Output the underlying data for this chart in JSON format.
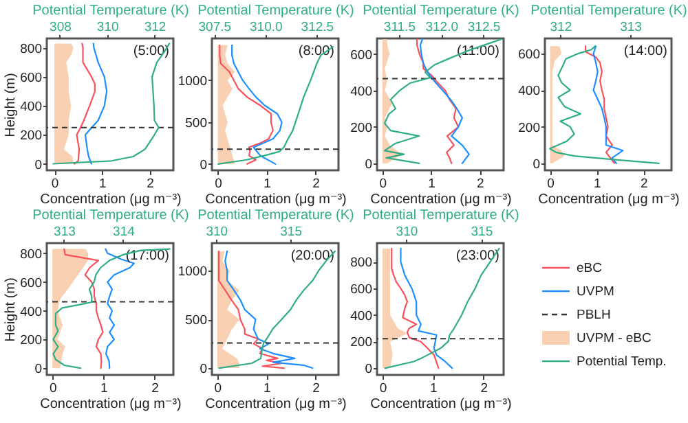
{
  "chart_data": [
    {
      "type": "line",
      "orientation": "horizontal",
      "annotations": [
        "(5:00)"
      ],
      "xlabel": "Concentration (μg m⁻³)",
      "x2label": "Potential Temperature (K)",
      "ylabel": "Height (m)",
      "xlim": [
        -0.16,
        2.5
      ],
      "xticks": [
        0,
        1,
        2
      ],
      "x2lim": [
        307.45,
        312.8
      ],
      "x2ticks": [
        308,
        310,
        312
      ],
      "ylim": [
        -45,
        865
      ],
      "yticks": [
        0,
        200,
        400,
        600,
        800
      ],
      "ref_lines": [
        {
          "axis": "y",
          "value": 250,
          "color": "#333333",
          "line_style": "dashed"
        }
      ],
      "series": [
        {
          "type": "line",
          "color": "#f8515b",
          "values": [
            0.42,
            0.5,
            0.52,
            0.47,
            0.55,
            0.62,
            0.74,
            0.85,
            0.85,
            0.78,
            0.6,
            0.6,
            0.58
          ],
          "x": [
            0,
            20,
            100,
            200,
            250,
            300,
            400,
            500,
            550,
            600,
            700,
            800,
            830
          ]
        },
        {
          "type": "line",
          "color": "#1e8fff",
          "values": [
            0.78,
            0.72,
            0.69,
            0.65,
            0.92,
            1.05,
            1.1,
            1.05,
            0.92,
            0.83,
            0.82
          ],
          "x": [
            0,
            50,
            100,
            200,
            300,
            400,
            500,
            600,
            700,
            800,
            830
          ]
        },
        {
          "type": "area",
          "color": "#f9d1b2",
          "values": [
            0.4,
            0.38,
            0.2,
            0.25,
            0.3,
            0.3,
            0.35,
            0.3,
            0.3,
            0.25,
            0.35,
            0.4,
            0.35
          ],
          "x": [
            0,
            50,
            100,
            150,
            200,
            300,
            400,
            500,
            600,
            700,
            750,
            800,
            830
          ]
        },
        {
          "type": "line",
          "axis": "x2",
          "color": "#2fae86",
          "values": [
            307.72,
            310.18,
            311.1,
            311.6,
            312.0,
            312.18,
            312.0,
            311.98,
            311.9,
            312.1,
            312.45,
            312.63
          ],
          "x": [
            0,
            20,
            50,
            100,
            200,
            250,
            300,
            400,
            600,
            700,
            780,
            830
          ]
        }
      ]
    },
    {
      "type": "line",
      "orientation": "horizontal",
      "annotations": [
        "(8:00)"
      ],
      "xlabel": "Concentration (μg m⁻³)",
      "x2label": "Potential Temperature (K)",
      "xlim": [
        -0.12,
        2.47
      ],
      "xticks": [
        0,
        1,
        2
      ],
      "x2lim": [
        307.39,
        313.56
      ],
      "x2ticks": [
        {
          "value": 307.5,
          "label": "307.5"
        },
        {
          "value": 310,
          "label": "310.0"
        },
        {
          "value": 312.5,
          "label": "312.5"
        }
      ],
      "ylim": [
        -75,
        1500
      ],
      "yticks": [
        0,
        500,
        1000
      ],
      "ref_lines": [
        {
          "axis": "y",
          "value": 178,
          "color": "#333333",
          "line_style": "dashed"
        }
      ],
      "series": [
        {
          "type": "line",
          "color": "#f8515b",
          "values": [
            0.6,
            0.78,
            0.64,
            0.66,
            0.64,
            0.87,
            1.04,
            1.13,
            1.09,
            1.09,
            0.87,
            0.6,
            0.42,
            0.33,
            0.24,
            0.06,
            0.04,
            0.04
          ],
          "x": [
            0,
            50,
            100,
            150,
            200,
            250,
            300,
            400,
            500,
            600,
            700,
            800,
            900,
            1000,
            1100,
            1200,
            1300,
            1420
          ]
        },
        {
          "type": "line",
          "color": "#1e8fff",
          "values": [
            1.18,
            0.87,
            0.73,
            1.13,
            1.27,
            1.31,
            1.22,
            0.96,
            0.78,
            0.64,
            0.51,
            0.42,
            0.33,
            0.29,
            0.29
          ],
          "x": [
            0,
            100,
            200,
            300,
            400,
            500,
            600,
            700,
            800,
            900,
            1000,
            1100,
            1200,
            1300,
            1420
          ]
        },
        {
          "type": "area",
          "color": "#f9d1b2",
          "values": [
            0.35,
            0.3,
            0.25,
            0.2,
            0.15,
            0.2,
            0.15,
            0.1,
            0.2,
            0.3,
            0.2,
            0.35,
            0.2,
            0.15,
            0.2
          ],
          "x": [
            0,
            100,
            200,
            300,
            400,
            500,
            600,
            700,
            800,
            900,
            1000,
            1100,
            1200,
            1300,
            1420
          ]
        },
        {
          "type": "line",
          "axis": "x2",
          "color": "#2fae86",
          "values": [
            307.7,
            309.09,
            309.94,
            310.69,
            310.9,
            311.1,
            311.33,
            311.6,
            311.86,
            312.2,
            312.5,
            312.7,
            313.3
          ],
          "x": [
            0,
            50,
            100,
            150,
            200,
            300,
            400,
            600,
            800,
            1000,
            1200,
            1300,
            1400
          ]
        }
      ]
    },
    {
      "type": "line",
      "orientation": "horizontal",
      "annotations": [
        "(11:00)"
      ],
      "xlabel": "Concentration (μg m⁻³)",
      "x2label": "Potential Temperature (K)",
      "xlim": [
        -0.11,
        2.49
      ],
      "xticks": [
        0,
        1,
        2
      ],
      "x2lim": [
        311.24,
        312.74
      ],
      "x2ticks": [
        311.5,
        {
          "value": 312,
          "label": "312.0"
        },
        312.5
      ],
      "ylim": [
        -38,
        685
      ],
      "yticks": [
        0,
        200,
        400,
        600
      ],
      "ref_lines": [
        {
          "axis": "y",
          "value": 465,
          "color": "#333333",
          "line_style": "dashed"
        }
      ],
      "series": [
        {
          "type": "line",
          "color": "#f8515b",
          "values": [
            1.42,
            1.38,
            1.32,
            1.47,
            1.33,
            1.56,
            1.47,
            1.51,
            1.38,
            1.29,
            1.11,
            1.02,
            0.84,
            0.84,
            0.76,
            0.71,
            0.71
          ],
          "x": [
            0,
            30,
            60,
            100,
            150,
            200,
            250,
            300,
            350,
            400,
            450,
            480,
            520,
            550,
            600,
            650,
            680
          ]
        },
        {
          "type": "line",
          "color": "#1e8fff",
          "values": [
            1.64,
            1.78,
            1.64,
            1.42,
            1.56,
            1.64,
            1.53,
            1.4,
            1.24,
            1.07,
            0.98,
            0.89,
            0.84,
            0.8,
            0.78,
            0.82
          ],
          "x": [
            0,
            50,
            100,
            150,
            200,
            250,
            300,
            350,
            400,
            450,
            480,
            520,
            550,
            600,
            650,
            680
          ]
        },
        {
          "type": "area",
          "color": "#f9d1b2",
          "values": [
            0.1,
            0.4,
            0.15,
            0.05,
            0.1,
            0.05,
            0.2,
            0.05,
            0.1,
            0.05,
            0.15,
            0.1,
            0.1
          ],
          "x": [
            0,
            50,
            100,
            150,
            200,
            250,
            330,
            400,
            450,
            520,
            600,
            650,
            680
          ]
        },
        {
          "type": "line",
          "axis": "x2",
          "color": "#2fae86",
          "values": [
            311.74,
            311.35,
            311.56,
            311.33,
            311.46,
            311.74,
            311.4,
            311.33,
            311.38,
            311.46,
            311.4,
            311.51,
            311.63,
            311.87,
            311.81,
            311.92,
            312.12,
            312.33,
            312.58,
            312.71
          ],
          "x": [
            0,
            30,
            50,
            70,
            110,
            150,
            180,
            220,
            270,
            300,
            350,
            400,
            440,
            470,
            500,
            540,
            580,
            620,
            660,
            680
          ]
        }
      ]
    },
    {
      "type": "line",
      "orientation": "horizontal",
      "annotations": [
        "(14:00)"
      ],
      "xlabel": "Concentration (μg m⁻³)",
      "x2label": "Potential Temperature (K)",
      "xlim": [
        -0.11,
        2.6
      ],
      "xticks": [
        0,
        1,
        2
      ],
      "x2lim": [
        311.78,
        313.59
      ],
      "x2ticks": [
        312,
        313
      ],
      "ylim": [
        -38,
        682
      ],
      "yticks": [
        0,
        200,
        400,
        600
      ],
      "series": [
        {
          "type": "line",
          "color": "#f8515b",
          "values": [
            1.38,
            1.29,
            1.2,
            1.33,
            1.2,
            1.24,
            1.2,
            1.16,
            1.16,
            1.11,
            1.07,
            1.11,
            1.07,
            0.98,
            0.76,
            0.76
          ],
          "x": [
            0,
            30,
            60,
            100,
            150,
            200,
            250,
            300,
            350,
            400,
            450,
            500,
            550,
            580,
            610,
            640
          ]
        },
        {
          "type": "line",
          "color": "#1e8fff",
          "values": [
            1.42,
            1.33,
            1.56,
            1.2,
            1.2,
            1.2,
            1.16,
            1.11,
            1.02,
            0.93,
            0.98,
            1.02,
            0.98,
            0.93,
            0.98
          ],
          "x": [
            0,
            30,
            70,
            100,
            150,
            200,
            250,
            300,
            350,
            400,
            450,
            500,
            550,
            600,
            640
          ]
        },
        {
          "type": "area",
          "color": "#f9d1b2",
          "values": [
            0.05,
            0.3,
            0.25,
            0.05,
            0.05,
            0.05,
            0.05,
            0.05,
            0.1,
            0.25,
            0.2
          ],
          "x": [
            0,
            40,
            70,
            100,
            200,
            300,
            400,
            500,
            560,
            600,
            640
          ]
        },
        {
          "type": "line",
          "axis": "x2",
          "color": "#2fae86",
          "values": [
            313.41,
            312.79,
            312.2,
            311.94,
            311.85,
            312.09,
            312.2,
            312.14,
            312.0,
            312.29,
            312.06,
            311.97,
            312.14,
            312.02,
            311.97,
            312.02,
            312.08,
            312.26,
            312.44,
            312.5
          ],
          "x": [
            0,
            20,
            40,
            60,
            80,
            120,
            160,
            200,
            230,
            270,
            310,
            360,
            400,
            440,
            480,
            520,
            570,
            600,
            620,
            640
          ]
        }
      ]
    },
    {
      "type": "line",
      "orientation": "horizontal",
      "annotations": [
        "(17:00)"
      ],
      "xlabel": "Concentration (μg m⁻³)",
      "x2label": "Potential Temperature (K)",
      "ylabel": "Height (m)",
      "xlim": [
        -0.11,
        2.37
      ],
      "xticks": [
        0,
        1,
        2
      ],
      "x2lim": [
        312.71,
        314.85
      ],
      "x2ticks": [
        313,
        314
      ],
      "ylim": [
        -47,
        871
      ],
      "yticks": [
        0,
        200,
        400,
        600,
        800
      ],
      "ref_lines": [
        {
          "axis": "y",
          "value": 462,
          "color": "#333333",
          "line_style": "dashed"
        }
      ],
      "series": [
        {
          "type": "line",
          "color": "#f8515b",
          "values": [
            0.95,
            0.96,
            0.95,
            0.86,
            0.9,
            0.99,
            0.95,
            0.9,
            0.86,
            0.86,
            0.82,
            0.82,
            0.77,
            0.64,
            0.73,
            0.9,
            0.25,
            0.23
          ],
          "x": [
            0,
            50,
            100,
            150,
            200,
            250,
            300,
            350,
            400,
            450,
            500,
            550,
            600,
            650,
            700,
            750,
            790,
            830
          ]
        },
        {
          "type": "line",
          "color": "#1e8fff",
          "values": [
            1.12,
            1.11,
            1.05,
            1.08,
            1.21,
            1.12,
            1.21,
            1.12,
            1.17,
            1.08,
            1.12,
            1.17,
            1.08,
            1.21,
            1.52,
            1.6,
            1.34,
            1.08,
            1.04
          ],
          "x": [
            0,
            50,
            100,
            150,
            200,
            250,
            300,
            350,
            400,
            450,
            500,
            550,
            600,
            650,
            700,
            730,
            760,
            800,
            830
          ]
        },
        {
          "type": "area",
          "color": "#f9d1b2",
          "values": [
            0.15,
            0.2,
            0.25,
            0.1,
            0.2,
            0.1,
            0.15,
            0.3,
            0.4,
            0.5,
            0.6,
            0.7,
            0.7,
            0.65
          ],
          "x": [
            0,
            100,
            150,
            200,
            300,
            400,
            480,
            550,
            600,
            650,
            700,
            750,
            800,
            830
          ]
        },
        {
          "type": "line",
          "axis": "x2",
          "color": "#2fae86",
          "values": [
            313.28,
            313.01,
            312.86,
            312.82,
            312.9,
            312.82,
            312.9,
            312.86,
            312.86,
            312.97,
            313.24,
            313.47,
            313.47,
            313.43,
            313.51,
            313.54,
            313.62,
            313.77,
            314.0,
            314.3,
            314.79
          ],
          "x": [
            0,
            20,
            60,
            100,
            150,
            200,
            260,
            300,
            380,
            420,
            440,
            460,
            500,
            550,
            600,
            650,
            700,
            750,
            790,
            820,
            830
          ]
        }
      ]
    },
    {
      "type": "line",
      "orientation": "horizontal",
      "annotations": [
        "(20:00)"
      ],
      "xlabel": "Concentration (μg m⁻³)",
      "x2label": "Potential Temperature (K)",
      "xlim": [
        -0.11,
        2.47
      ],
      "xticks": [
        0,
        1,
        2
      ],
      "x2lim": [
        309.71,
        318.24
      ],
      "x2ticks": [
        310,
        315
      ],
      "ylim": [
        -70,
        1284
      ],
      "yticks": [
        0,
        500,
        1000
      ],
      "ref_lines": [
        {
          "axis": "y",
          "value": 258,
          "color": "#333333",
          "line_style": "dashed"
        }
      ],
      "series": [
        {
          "type": "line",
          "color": "#f8515b",
          "values": [
            1.36,
            0.92,
            1.32,
            1.0,
            1.23,
            0.87,
            0.92,
            0.74,
            0.83,
            0.56,
            0.56,
            0.47,
            0.43,
            0.29,
            0.16,
            0.03,
            0.03,
            0.03
          ],
          "x": [
            0,
            20,
            50,
            80,
            100,
            150,
            200,
            250,
            300,
            350,
            400,
            500,
            600,
            700,
            800,
            900,
            1000,
            1200
          ]
        },
        {
          "type": "line",
          "color": "#1e8fff",
          "values": [
            1.94,
            1.76,
            1.14,
            1.58,
            1.14,
            0.87,
            1.05,
            0.83,
            0.74,
            0.78,
            0.56,
            0.47,
            0.34,
            0.2,
            0.2,
            0.16,
            0.2
          ],
          "x": [
            0,
            30,
            60,
            100,
            150,
            200,
            250,
            300,
            400,
            500,
            600,
            700,
            800,
            900,
            1000,
            1100,
            1200
          ]
        },
        {
          "type": "area",
          "color": "#f9d1b2",
          "values": [
            0.45,
            0.45,
            0.4,
            0.1,
            0.2,
            0.3,
            0.45,
            0.2,
            0.3,
            0.45,
            0.2,
            0.25,
            0.1,
            0.15
          ],
          "x": [
            0,
            50,
            100,
            200,
            300,
            400,
            500,
            600,
            700,
            800,
            900,
            1000,
            1100,
            1200
          ]
        },
        {
          "type": "line",
          "axis": "x2",
          "color": "#2fae86",
          "values": [
            310.2,
            312.4,
            313.0,
            313.1,
            313.2,
            313.4,
            313.8,
            314.4,
            315.0,
            315.4,
            315.9,
            316.5,
            316.9,
            317.4,
            318.0
          ],
          "x": [
            0,
            50,
            100,
            200,
            260,
            300,
            400,
            500,
            600,
            700,
            800,
            900,
            1000,
            1100,
            1200
          ]
        }
      ]
    },
    {
      "type": "line",
      "orientation": "horizontal",
      "annotations": [
        "(23:00)"
      ],
      "legend": "right",
      "xlabel": "Concentration (μg m⁻³)",
      "x2label": "Potential Temperature (K)",
      "xlim": [
        -0.11,
        2.4
      ],
      "xticks": [
        0,
        1,
        2
      ],
      "x2lim": [
        308.05,
        316.5
      ],
      "x2ticks": [
        310,
        315
      ],
      "ylim": [
        -51,
        941
      ],
      "yticks": [
        0,
        200,
        400,
        600,
        800
      ],
      "ref_lines": [
        {
          "axis": "y",
          "value": 221,
          "label": "PBLH",
          "color": "#333333",
          "line_style": "dashed"
        }
      ],
      "series": [
        {
          "name": "eBC",
          "type": "line",
          "color": "#f8515b",
          "values": [
            1.11,
            1.02,
            0.89,
            0.76,
            0.53,
            0.49,
            0.53,
            0.67,
            0.4,
            0.44,
            0.49,
            0.44,
            0.36,
            0.27,
            0.22,
            0.18,
            0.18,
            0.18
          ],
          "x": [
            0,
            100,
            150,
            200,
            230,
            270,
            300,
            330,
            380,
            450,
            500,
            550,
            600,
            650,
            700,
            750,
            800,
            900
          ]
        },
        {
          "name": "UVPM",
          "type": "line",
          "color": "#1e8fff",
          "values": [
            1.38,
            1.24,
            1.07,
            1.02,
            1.07,
            0.71,
            0.76,
            0.67,
            0.67,
            0.58,
            0.44,
            0.36,
            0.36
          ],
          "x": [
            0,
            50,
            100,
            150,
            250,
            280,
            330,
            400,
            500,
            600,
            700,
            800,
            900
          ]
        },
        {
          "name": "UVPM - eBC",
          "type": "area",
          "color": "#f9d1b2",
          "values": [
            0.15,
            0.2,
            0.15,
            0.49,
            0.3,
            0.15,
            0.15,
            0.15,
            0.15
          ],
          "x": [
            0,
            100,
            200,
            260,
            300,
            400,
            600,
            800,
            900
          ]
        },
        {
          "name": "Potential Temp.",
          "type": "line",
          "axis": "x2",
          "color": "#2fae86",
          "values": [
            308.6,
            310.5,
            311.1,
            312.3,
            312.8,
            312.9,
            313.2,
            313.7,
            314.1,
            314.6,
            315.0,
            315.6,
            316.2
          ],
          "x": [
            0,
            50,
            80,
            150,
            200,
            250,
            300,
            400,
            500,
            600,
            700,
            800,
            900
          ]
        }
      ]
    }
  ]
}
